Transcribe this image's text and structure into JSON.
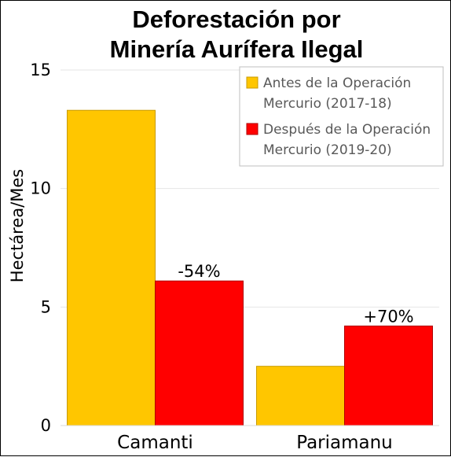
{
  "chart_data": {
    "type": "bar",
    "title": [
      "Deforestación por",
      "Minería Aurífera Ilegal"
    ],
    "ylabel": "Hectárea/Mes",
    "xlabel": "",
    "ylim": [
      0,
      15
    ],
    "yticks": [
      0,
      5,
      10,
      15
    ],
    "grid": true,
    "legend_position": "top-right",
    "categories": [
      "Camanti",
      "Pariamanu"
    ],
    "series": [
      {
        "name": [
          "Antes de la Operación",
          "Mercurio (2017-18)"
        ],
        "color": "#FFC600",
        "edge": "#C89B00",
        "values": [
          13.3,
          2.5
        ]
      },
      {
        "name": [
          "Después de la Operación",
          "Mercurio (2019-20)"
        ],
        "color": "#FF0000",
        "edge": "#B00000",
        "values": [
          6.1,
          4.2
        ]
      }
    ],
    "data_labels": [
      {
        "category": 0,
        "series": 1,
        "text": "-54%"
      },
      {
        "category": 1,
        "series": 1,
        "text": "+70%"
      }
    ]
  }
}
